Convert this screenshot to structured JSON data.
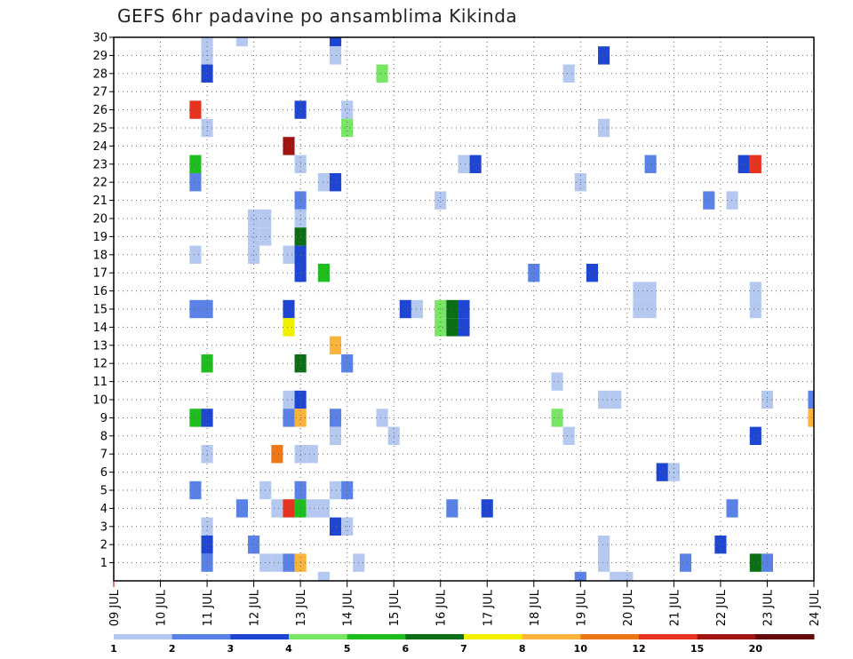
{
  "title": "GEFS 6hr padavine po ansamblima Kikinda",
  "chart_data": {
    "type": "heatmap",
    "title": "GEFS 6hr padavine po ansamblima Kikinda",
    "xlabel": "",
    "ylabel": "",
    "x_tick_labels": [
      "09 JUL",
      "10 JUL",
      "11 JUL",
      "12 JUL",
      "13 JUL",
      "14 JUL",
      "15 JUL",
      "16 JUL",
      "17 JUL",
      "18 JUL",
      "19 JUL",
      "20 JUL",
      "21 JUL",
      "22 JUL",
      "23 JUL",
      "24 JUL"
    ],
    "xlim": [
      0,
      60
    ],
    "ylim": [
      0,
      30
    ],
    "y_tick_labels": [
      "1",
      "2",
      "3",
      "4",
      "5",
      "6",
      "7",
      "8",
      "9",
      "10",
      "11",
      "12",
      "13",
      "14",
      "15",
      "16",
      "17",
      "18",
      "19",
      "20",
      "21",
      "22",
      "23",
      "24",
      "25",
      "26",
      "27",
      "28",
      "29",
      "30"
    ],
    "grid": true,
    "legend": {
      "placement": "bottom",
      "labels": [
        "1",
        "2",
        "3",
        "4",
        "5",
        "6",
        "7",
        "8",
        "10",
        "12",
        "15",
        "20"
      ],
      "colors": [
        "#b4c8f0",
        "#5a82e6",
        "#1e46d2",
        "#78e664",
        "#1ebe1e",
        "#0a6e14",
        "#f0f000",
        "#fab43c",
        "#f07814",
        "#e6321e",
        "#a01414",
        "#640a0a"
      ]
    },
    "cells_note": "each cell: [step index (6-hour steps from 09 JUL 00z), ensemble member, color class 0-11]",
    "cells": [
      [
        8,
        30,
        0
      ],
      [
        11,
        30,
        0
      ],
      [
        19,
        30,
        2
      ],
      [
        8,
        29,
        0
      ],
      [
        19,
        29,
        0
      ],
      [
        42,
        29,
        2
      ],
      [
        8,
        28,
        2
      ],
      [
        23,
        28,
        3
      ],
      [
        39,
        28,
        0
      ],
      [
        7,
        26,
        9
      ],
      [
        16,
        26,
        2
      ],
      [
        20,
        26,
        0
      ],
      [
        8,
        25,
        0
      ],
      [
        20,
        25,
        3
      ],
      [
        42,
        25,
        0
      ],
      [
        15,
        24,
        10
      ],
      [
        7,
        23,
        4
      ],
      [
        16,
        23,
        0
      ],
      [
        30,
        23,
        0
      ],
      [
        31,
        23,
        2
      ],
      [
        46,
        23,
        1
      ],
      [
        54,
        23,
        2
      ],
      [
        55,
        23,
        9
      ],
      [
        7,
        22,
        1
      ],
      [
        18,
        22,
        0
      ],
      [
        19,
        22,
        2
      ],
      [
        40,
        22,
        0
      ],
      [
        16,
        21,
        1
      ],
      [
        28,
        21,
        0
      ],
      [
        51,
        21,
        1
      ],
      [
        53,
        21,
        0
      ],
      [
        12,
        20,
        0
      ],
      [
        13,
        20,
        0
      ],
      [
        16,
        20,
        0
      ],
      [
        12,
        19,
        0
      ],
      [
        13,
        19,
        0
      ],
      [
        16,
        19,
        5
      ],
      [
        7,
        18,
        0
      ],
      [
        12,
        18,
        0
      ],
      [
        15,
        18,
        0
      ],
      [
        16,
        18,
        2
      ],
      [
        16,
        17,
        2
      ],
      [
        18,
        17,
        4
      ],
      [
        36,
        17,
        1
      ],
      [
        41,
        17,
        2
      ],
      [
        45,
        16,
        0
      ],
      [
        46,
        16,
        0
      ],
      [
        55,
        16,
        0
      ],
      [
        7,
        15,
        1
      ],
      [
        8,
        15,
        1
      ],
      [
        15,
        15,
        2
      ],
      [
        25,
        15,
        2
      ],
      [
        26,
        15,
        0
      ],
      [
        28,
        15,
        3
      ],
      [
        29,
        15,
        5
      ],
      [
        30,
        15,
        2
      ],
      [
        45,
        15,
        0
      ],
      [
        46,
        15,
        0
      ],
      [
        55,
        15,
        0
      ],
      [
        15,
        14,
        6
      ],
      [
        28,
        14,
        3
      ],
      [
        29,
        14,
        5
      ],
      [
        30,
        14,
        2
      ],
      [
        19,
        13,
        7
      ],
      [
        8,
        12,
        4
      ],
      [
        16,
        12,
        5
      ],
      [
        20,
        12,
        1
      ],
      [
        38,
        11,
        0
      ],
      [
        15,
        10,
        0
      ],
      [
        16,
        10,
        2
      ],
      [
        42,
        10,
        0
      ],
      [
        43,
        10,
        0
      ],
      [
        56,
        10,
        0
      ],
      [
        60,
        10,
        1
      ],
      [
        7,
        9,
        4
      ],
      [
        8,
        9,
        2
      ],
      [
        15,
        9,
        1
      ],
      [
        16,
        9,
        7
      ],
      [
        19,
        9,
        1
      ],
      [
        23,
        9,
        0
      ],
      [
        38,
        9,
        3
      ],
      [
        60,
        9,
        7
      ],
      [
        19,
        8,
        0
      ],
      [
        24,
        8,
        0
      ],
      [
        39,
        8,
        0
      ],
      [
        55,
        8,
        2
      ],
      [
        8,
        7,
        0
      ],
      [
        14,
        7,
        8
      ],
      [
        16,
        7,
        0
      ],
      [
        17,
        7,
        0
      ],
      [
        47,
        6,
        2
      ],
      [
        48,
        6,
        0
      ],
      [
        7,
        5,
        1
      ],
      [
        13,
        5,
        0
      ],
      [
        16,
        5,
        1
      ],
      [
        19,
        5,
        0
      ],
      [
        20,
        5,
        1
      ],
      [
        11,
        4,
        1
      ],
      [
        14,
        4,
        0
      ],
      [
        15,
        4,
        9
      ],
      [
        16,
        4,
        4
      ],
      [
        17,
        4,
        0
      ],
      [
        18,
        4,
        0
      ],
      [
        29,
        4,
        1
      ],
      [
        32,
        4,
        2
      ],
      [
        53,
        4,
        1
      ],
      [
        8,
        3,
        0
      ],
      [
        19,
        3,
        2
      ],
      [
        20,
        3,
        0
      ],
      [
        8,
        2,
        2
      ],
      [
        12,
        2,
        1
      ],
      [
        42,
        2,
        0
      ],
      [
        52,
        2,
        2
      ],
      [
        8,
        1,
        1
      ],
      [
        13,
        1,
        0
      ],
      [
        14,
        1,
        0
      ],
      [
        15,
        1,
        1
      ],
      [
        16,
        1,
        7
      ],
      [
        21,
        1,
        0
      ],
      [
        42,
        1,
        0
      ],
      [
        49,
        1,
        1
      ],
      [
        55,
        1,
        5
      ],
      [
        56,
        1,
        1
      ],
      [
        18,
        0,
        0
      ],
      [
        40,
        0,
        1
      ],
      [
        43,
        0,
        0
      ],
      [
        44,
        0,
        0
      ]
    ]
  }
}
